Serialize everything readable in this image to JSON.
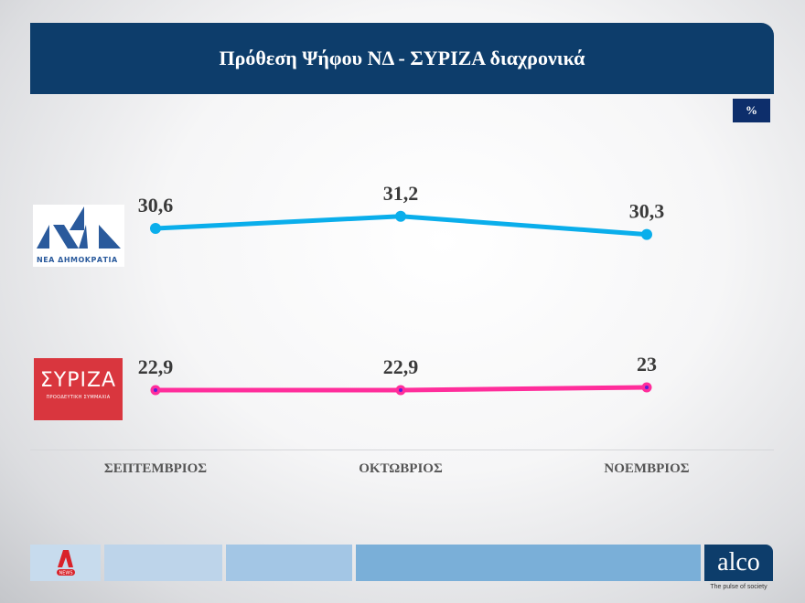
{
  "header": {
    "title": "Πρόθεση Ψήφου ΝΔ  - ΣΥΡΙΖΑ διαχρονικά",
    "unit": "%"
  },
  "logos": {
    "nd": {
      "text": "ΝΕΑ ΔΗΜΟΚΡΑΤΙΑ",
      "color": "#2a5a9c"
    },
    "syriza": {
      "text": "ΣΥΡΙΖΑ",
      "subtext": "ΠΡΟΟΔΕΥΤΙΚΗ ΣΥΜΜΑΧΙΑ",
      "color": "#d9363e"
    }
  },
  "chart_data": {
    "type": "line",
    "title": "Πρόθεση Ψήφου ΝΔ  - ΣΥΡΙΖΑ διαχρονικά",
    "xlabel": "",
    "ylabel": "%",
    "categories": [
      "ΣΕΠΤΕΜΒΡΙΟΣ",
      "ΟΚΤΩΒΡΙΟΣ",
      "ΝΟΕΜΒΡΙΟΣ"
    ],
    "series": [
      {
        "name": "ΝΕΑ ΔΗΜΟΚΡΑΤΙΑ",
        "values": [
          30.6,
          31.2,
          30.3
        ],
        "labels": [
          "30,6",
          "31,2",
          "30,3"
        ],
        "color": "#0aaeeb"
      },
      {
        "name": "ΣΥΡΙΖΑ",
        "values": [
          22.9,
          22.9,
          23.0
        ],
        "labels": [
          "22,9",
          "22,9",
          "23"
        ],
        "color": "#ff2d9b"
      }
    ],
    "grid": false,
    "legend": "logos at left"
  },
  "footer": {
    "brand": "alco",
    "tagline": "The pulse of society",
    "partner": "NEWS",
    "bar_colors": [
      "#c7dbed",
      "#bdd4ea",
      "#a3c6e5",
      "#7aafd8"
    ]
  }
}
